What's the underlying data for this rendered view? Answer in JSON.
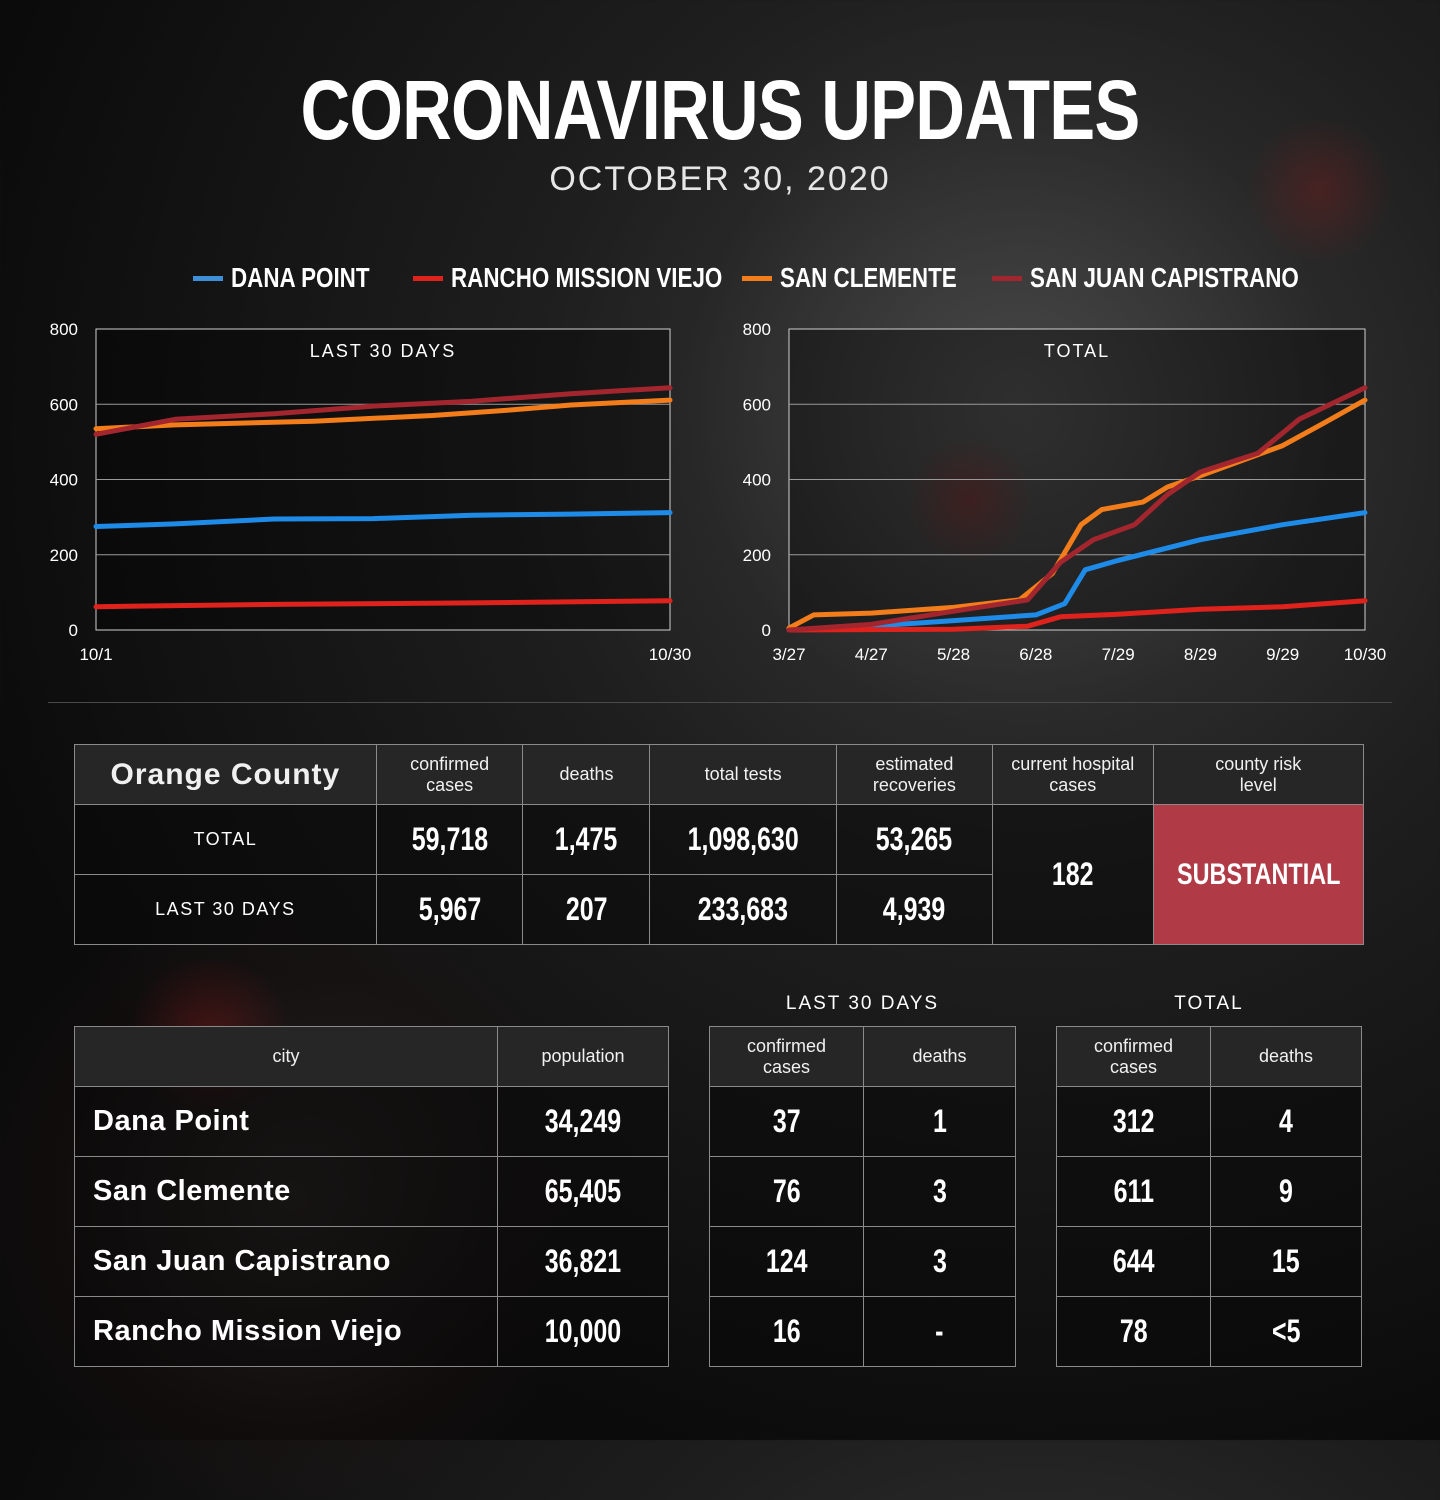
{
  "header": {
    "title": "CORONAVIRUS UPDATES",
    "date": "OCTOBER 30, 2020"
  },
  "legend": [
    {
      "label": "DANA POINT",
      "color": "#3d8fd8"
    },
    {
      "label": "RANCHO MISSION VIEJO",
      "color": "#e0221c"
    },
    {
      "label": "SAN CLEMENTE",
      "color": "#f27d1a"
    },
    {
      "label": "SAN JUAN CAPISTRANO",
      "color": "#a3262f"
    }
  ],
  "chart_data": [
    {
      "type": "line",
      "title": "LAST 30 DAYS",
      "x_tick_labels": [
        "10/1",
        "10/30"
      ],
      "xlim": [
        1,
        30
      ],
      "ylim": [
        0,
        800
      ],
      "y_ticks": [
        0,
        200,
        400,
        600,
        800
      ],
      "grid": true,
      "series": [
        {
          "name": "DANA POINT",
          "color": "#1e8be8",
          "x": [
            1,
            5,
            10,
            15,
            20,
            25,
            30
          ],
          "y": [
            275,
            282,
            295,
            296,
            305,
            308,
            312
          ]
        },
        {
          "name": "RANCHO MISSION VIEJO",
          "color": "#e0221c",
          "x": [
            1,
            10,
            20,
            30
          ],
          "y": [
            62,
            68,
            72,
            78
          ]
        },
        {
          "name": "SAN CLEMENTE",
          "color": "#f27d1a",
          "x": [
            1,
            5,
            12,
            18,
            22,
            25,
            30
          ],
          "y": [
            535,
            545,
            555,
            570,
            585,
            598,
            611
          ]
        },
        {
          "name": "SAN JUAN CAPISTRANO",
          "color": "#a3262f",
          "x": [
            1,
            5,
            10,
            15,
            20,
            25,
            30
          ],
          "y": [
            520,
            560,
            575,
            595,
            608,
            628,
            644
          ]
        }
      ]
    },
    {
      "type": "line",
      "title": "TOTAL",
      "x_tick_labels": [
        "3/27",
        "4/27",
        "5/28",
        "6/28",
        "7/29",
        "8/29",
        "9/29",
        "10/30"
      ],
      "xlim": [
        0,
        7
      ],
      "ylim": [
        0,
        800
      ],
      "y_ticks": [
        0,
        200,
        400,
        600,
        800
      ],
      "grid": true,
      "series": [
        {
          "name": "DANA POINT",
          "color": "#1e8be8",
          "x": [
            0,
            1,
            2,
            3,
            3.35,
            3.6,
            4,
            5,
            6,
            7
          ],
          "y": [
            0,
            10,
            25,
            40,
            70,
            160,
            185,
            240,
            280,
            312
          ]
        },
        {
          "name": "RANCHO MISSION VIEJO",
          "color": "#e0221c",
          "x": [
            0,
            2,
            2.9,
            3.3,
            4,
            5,
            6,
            7
          ],
          "y": [
            0,
            2,
            10,
            35,
            42,
            55,
            62,
            78
          ]
        },
        {
          "name": "SAN CLEMENTE",
          "color": "#f27d1a",
          "x": [
            0,
            0.3,
            1,
            2,
            2.8,
            3.2,
            3.55,
            3.8,
            4.3,
            4.6,
            5,
            5.5,
            6,
            6.5,
            7
          ],
          "y": [
            5,
            40,
            45,
            60,
            80,
            150,
            280,
            320,
            340,
            380,
            410,
            450,
            490,
            550,
            611
          ]
        },
        {
          "name": "SAN JUAN CAPISTRANO",
          "color": "#a3262f",
          "x": [
            0,
            1,
            2,
            2.9,
            3.3,
            3.7,
            4.2,
            4.6,
            5,
            5.7,
            6.2,
            7
          ],
          "y": [
            0,
            15,
            50,
            80,
            180,
            240,
            280,
            360,
            420,
            470,
            560,
            644
          ]
        }
      ]
    }
  ],
  "county": {
    "name": "Orange County",
    "headers": [
      "confirmed cases",
      "deaths",
      "total tests",
      "estimated recoveries",
      "current hospital cases",
      "county risk level"
    ],
    "rows": [
      {
        "label": "TOTAL",
        "values": [
          "59,718",
          "1,475",
          "1,098,630",
          "53,265"
        ]
      },
      {
        "label": "LAST 30 DAYS",
        "values": [
          "5,967",
          "207",
          "233,683",
          "4,939"
        ]
      }
    ],
    "hospital_cases": "182",
    "risk_level": "SUBSTANTIAL",
    "risk_color": "#b13a47"
  },
  "cities": {
    "section_last30": "LAST 30 DAYS",
    "section_total": "TOTAL",
    "header_city": "city",
    "header_population": "population",
    "header_cases": "confirmed cases",
    "header_deaths": "deaths",
    "rows": [
      {
        "city": "Dana Point",
        "population": "34,249",
        "last30_cases": "37",
        "last30_deaths": "1",
        "total_cases": "312",
        "total_deaths": "4"
      },
      {
        "city": "San Clemente",
        "population": "65,405",
        "last30_cases": "76",
        "last30_deaths": "3",
        "total_cases": "611",
        "total_deaths": "9"
      },
      {
        "city": "San Juan Capistrano",
        "population": "36,821",
        "last30_cases": "124",
        "last30_deaths": "3",
        "total_cases": "644",
        "total_deaths": "15"
      },
      {
        "city": "Rancho Mission Viejo",
        "population": "10,000",
        "last30_cases": "16",
        "last30_deaths": "-",
        "total_cases": "78",
        "total_deaths": "<5"
      }
    ]
  }
}
